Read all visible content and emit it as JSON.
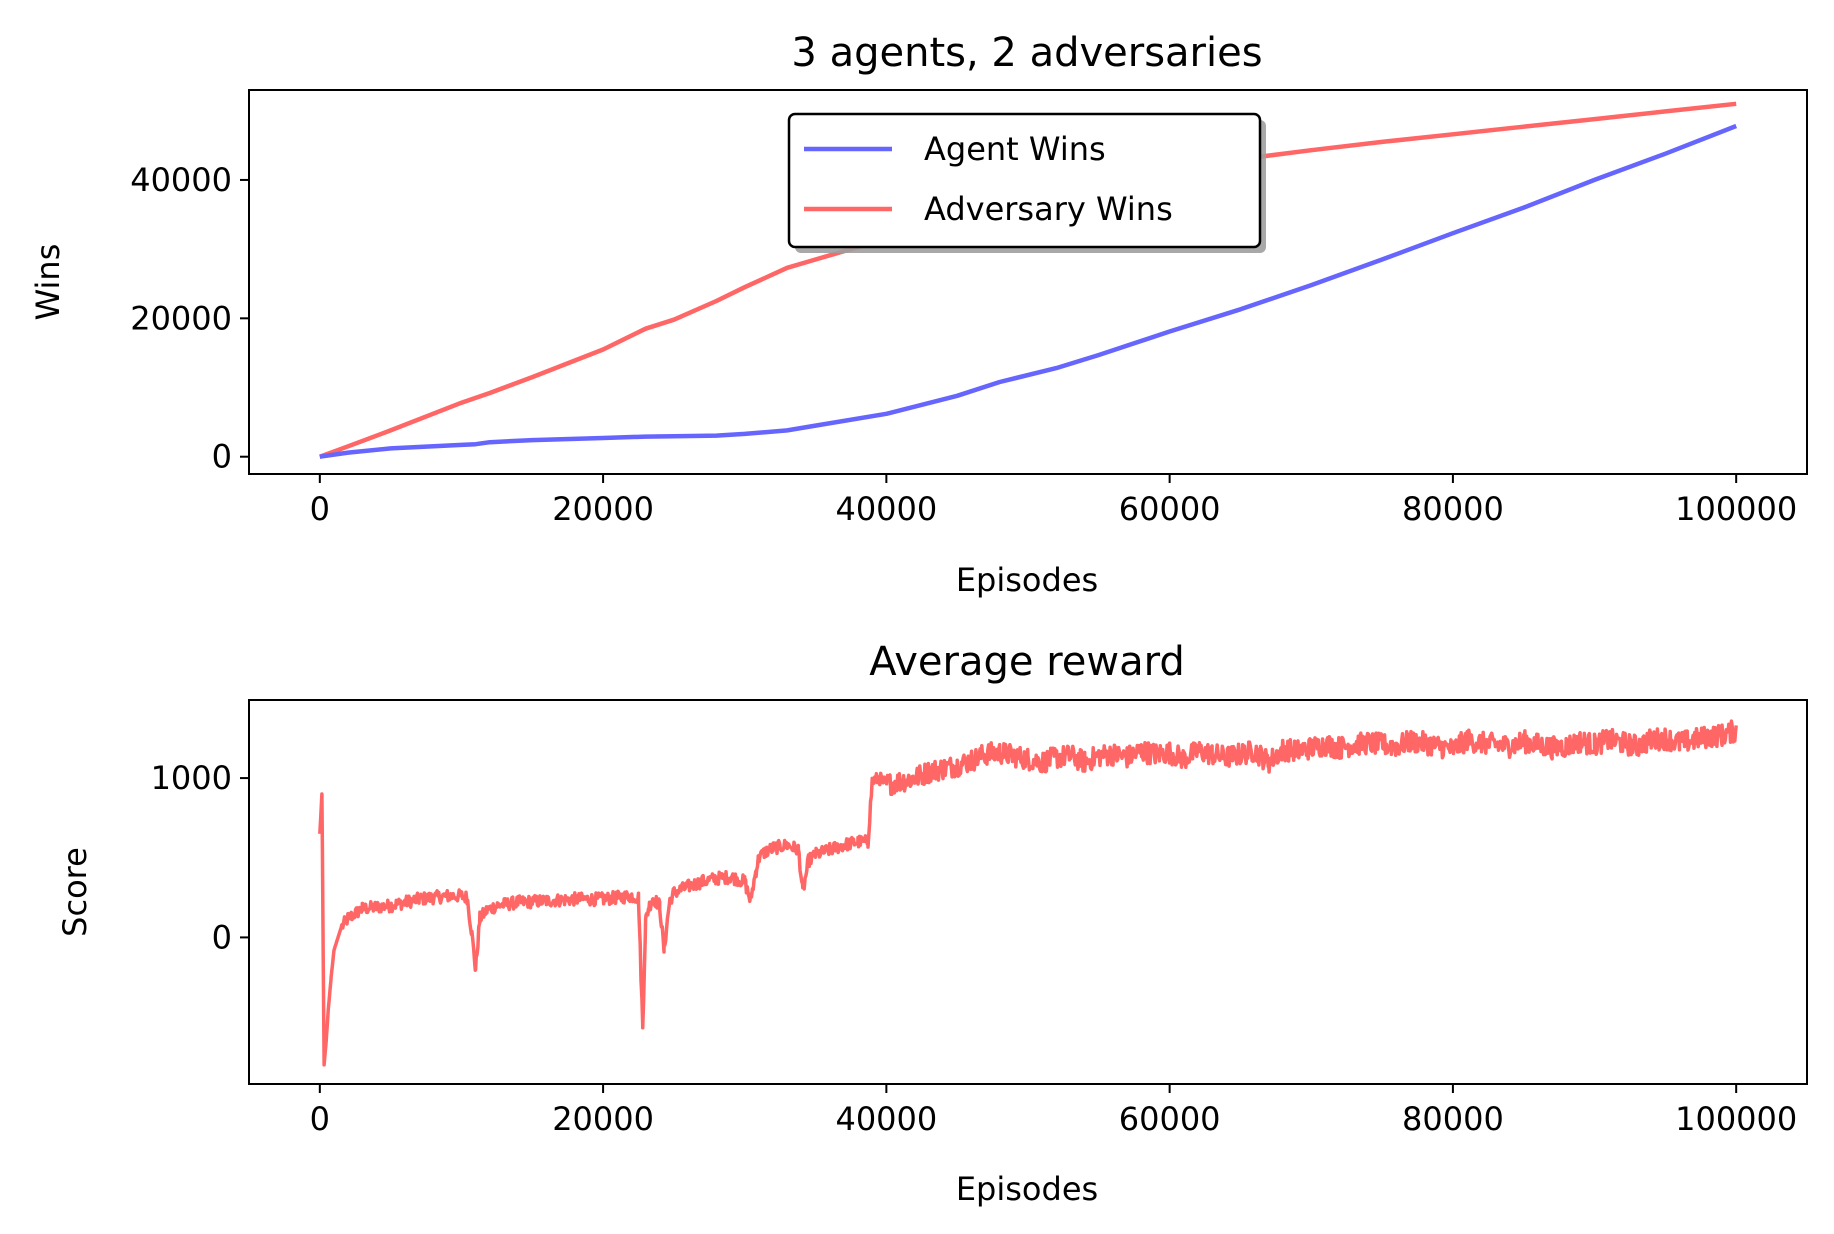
{
  "chart_data": [
    {
      "type": "line",
      "title": "3 agents, 2 adversaries",
      "xlabel": "Episodes",
      "ylabel": "Wins",
      "xlim": [
        -5000,
        105000
      ],
      "ylim": [
        -2500,
        53000
      ],
      "xticks": [
        0,
        20000,
        40000,
        60000,
        80000,
        100000
      ],
      "xtick_labels": [
        "0",
        "20000",
        "40000",
        "60000",
        "80000",
        "100000"
      ],
      "yticks": [
        0,
        20000,
        40000
      ],
      "ytick_labels": [
        "0",
        "20000",
        "40000"
      ],
      "grid": false,
      "legend_position": "upper center",
      "x": [
        0,
        2000,
        5000,
        10000,
        11000,
        12000,
        15000,
        20000,
        23000,
        25000,
        28000,
        30000,
        33000,
        35000,
        40000,
        45000,
        48000,
        52000,
        55000,
        60000,
        65000,
        70000,
        75000,
        80000,
        85000,
        90000,
        95000,
        100000
      ],
      "series": [
        {
          "name": "Agent Wins",
          "color": "#6666ff",
          "values": [
            0,
            600,
            1200,
            1700,
            1800,
            2100,
            2400,
            2700,
            2900,
            2950,
            3050,
            3300,
            3800,
            4500,
            6200,
            8800,
            10800,
            12800,
            14700,
            18100,
            21300,
            24800,
            28500,
            32300,
            36000,
            40000,
            43800,
            47800
          ]
        },
        {
          "name": "Adversary Wins",
          "color": "#ff6666",
          "values": [
            0,
            1500,
            3800,
            7800,
            8500,
            9200,
            11500,
            15500,
            18500,
            19800,
            22500,
            24500,
            27300,
            28500,
            31500,
            34500,
            36500,
            39000,
            40500,
            41800,
            43000,
            44300,
            45500,
            46600,
            47700,
            48800,
            49900,
            51000
          ]
        }
      ]
    },
    {
      "type": "line",
      "title": "Average reward",
      "xlabel": "Episodes",
      "ylabel": "Score",
      "xlim": [
        -5000,
        105000
      ],
      "ylim": [
        -920,
        1490
      ],
      "xticks": [
        0,
        20000,
        40000,
        60000,
        80000,
        100000
      ],
      "xtick_labels": [
        "0",
        "20000",
        "40000",
        "60000",
        "80000",
        "100000"
      ],
      "yticks": [
        0,
        1000
      ],
      "ytick_labels": [
        "0",
        "1000"
      ],
      "grid": false,
      "series": [
        {
          "name": "",
          "color": "#ff6666",
          "x": [
            0,
            150,
            300,
            450,
            600,
            800,
            1000,
            1500,
            2000,
            3000,
            4000,
            5000,
            6000,
            7000,
            8000,
            9000,
            10000,
            10400,
            10700,
            11000,
            11300,
            11800,
            12500,
            14000,
            16000,
            18000,
            20000,
            21000,
            22000,
            22500,
            22800,
            23000,
            23200,
            23500,
            24000,
            24300,
            24700,
            25000,
            25500,
            26000,
            27000,
            28000,
            29000,
            30000,
            30400,
            30800,
            31000,
            31500,
            32000,
            33000,
            33800,
            34100,
            34500,
            35000,
            36000,
            37000,
            38000,
            38700,
            39000,
            39500,
            40000,
            41000,
            42000,
            43000,
            44000,
            45000,
            46000,
            47000,
            48000,
            49000,
            50000,
            51000,
            52000,
            53000,
            54000,
            55000,
            56000,
            57000,
            58000,
            59000,
            60000,
            61000,
            62000,
            63000,
            64000,
            65000,
            66000,
            67000,
            68000,
            69000,
            70000,
            71000,
            72000,
            73000,
            74000,
            75000,
            76000,
            77000,
            78000,
            79000,
            80000,
            81000,
            82000,
            83000,
            84000,
            85000,
            86000,
            87000,
            88000,
            89000,
            90000,
            91000,
            92000,
            93000,
            94000,
            95000,
            96000,
            97000,
            98000,
            99000,
            100000
          ],
          "values": [
            650,
            900,
            -800,
            -650,
            -450,
            -250,
            -80,
            60,
            120,
            180,
            190,
            200,
            220,
            240,
            250,
            260,
            260,
            250,
            50,
            -200,
            120,
            170,
            200,
            220,
            230,
            240,
            240,
            250,
            260,
            250,
            -560,
            100,
            180,
            250,
            200,
            -80,
            230,
            280,
            300,
            320,
            350,
            370,
            380,
            350,
            230,
            420,
            500,
            540,
            560,
            580,
            550,
            280,
            480,
            520,
            550,
            580,
            600,
            600,
            980,
            1000,
            960,
            980,
            1000,
            1040,
            1060,
            1080,
            1110,
            1150,
            1160,
            1140,
            1120,
            1100,
            1130,
            1140,
            1100,
            1140,
            1150,
            1130,
            1170,
            1150,
            1160,
            1120,
            1170,
            1150,
            1130,
            1150,
            1170,
            1100,
            1180,
            1170,
            1190,
            1210,
            1190,
            1210,
            1220,
            1210,
            1200,
            1230,
            1220,
            1200,
            1180,
            1240,
            1220,
            1210,
            1200,
            1230,
            1210,
            1190,
            1200,
            1230,
            1210,
            1240,
            1220,
            1200,
            1240,
            1250,
            1220,
            1240,
            1260,
            1270,
            1300
          ]
        }
      ],
      "noise": {
        "amplitude_after_40000": 70,
        "amplitude_before_40000": 40
      }
    }
  ]
}
